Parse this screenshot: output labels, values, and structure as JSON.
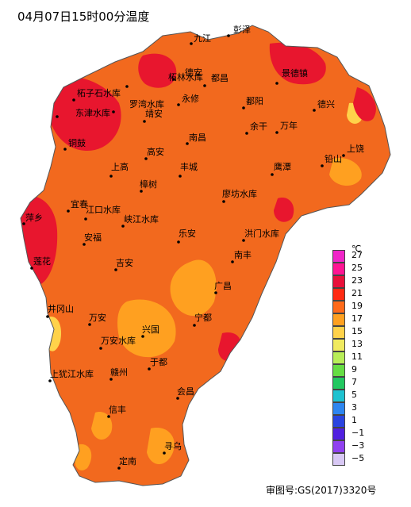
{
  "title": "04月07日15时00分温度",
  "approval_number": "审图号:GS(2017)3320号",
  "legend": {
    "unit": "℃",
    "entries": [
      {
        "label": "27",
        "color": "#f025c8"
      },
      {
        "label": "25",
        "color": "#ff1493"
      },
      {
        "label": "23",
        "color": "#e8103a"
      },
      {
        "label": "21",
        "color": "#ff2a12"
      },
      {
        "label": "19",
        "color": "#ff6a1a"
      },
      {
        "label": "17",
        "color": "#ffa020"
      },
      {
        "label": "15",
        "color": "#ffd24a"
      },
      {
        "label": "13",
        "color": "#f0ea60"
      },
      {
        "label": "11",
        "color": "#b8ee58"
      },
      {
        "label": "9",
        "color": "#66dd44"
      },
      {
        "label": "7",
        "color": "#22c860"
      },
      {
        "label": "5",
        "color": "#1ec2d0"
      },
      {
        "label": "3",
        "color": "#2e86f0"
      },
      {
        "label": "1",
        "color": "#2a44e0"
      },
      {
        "label": "−1",
        "color": "#5020e0"
      },
      {
        "label": "−3",
        "color": "#9040f0"
      },
      {
        "label": "−5",
        "color": "#d8c8f4"
      }
    ]
  },
  "colors": {
    "main_fill": "#f2691e",
    "hot": "#e8162e",
    "warm": "#ffa020",
    "mild": "#ffd24a",
    "cool": "#f0ea60"
  },
  "cities": [
    {
      "name": "九江"
    },
    {
      "name": "彭泽"
    },
    {
      "name": "柘林水库"
    },
    {
      "name": "德安"
    },
    {
      "name": "都昌"
    },
    {
      "name": "景德镇"
    },
    {
      "name": "柘子石水库"
    },
    {
      "name": "东津水库"
    },
    {
      "name": "罗湾水库"
    },
    {
      "name": "永修"
    },
    {
      "name": "鄱阳"
    },
    {
      "name": "德兴"
    },
    {
      "name": "靖安"
    },
    {
      "name": "铜鼓"
    },
    {
      "name": "南昌"
    },
    {
      "name": "余干"
    },
    {
      "name": "万年"
    },
    {
      "name": "高安"
    },
    {
      "name": "上饶"
    },
    {
      "name": "上高"
    },
    {
      "name": "丰城"
    },
    {
      "name": "鹰潭"
    },
    {
      "name": "铅山"
    },
    {
      "name": "樟树"
    },
    {
      "name": "廖坊水库"
    },
    {
      "name": "宜春"
    },
    {
      "name": "江口水库"
    },
    {
      "name": "峡江水库"
    },
    {
      "name": "萍乡"
    },
    {
      "name": "安福"
    },
    {
      "name": "乐安"
    },
    {
      "name": "洪门水库"
    },
    {
      "name": "莲花"
    },
    {
      "name": "吉安"
    },
    {
      "name": "南丰"
    },
    {
      "name": "广昌"
    },
    {
      "name": "井冈山"
    },
    {
      "name": "万安"
    },
    {
      "name": "宁都"
    },
    {
      "name": "兴国"
    },
    {
      "name": "万安水库"
    },
    {
      "name": "于都"
    },
    {
      "name": "上犹江水库"
    },
    {
      "name": "赣州"
    },
    {
      "name": "会昌"
    },
    {
      "name": "信丰"
    },
    {
      "name": "寻乌"
    },
    {
      "name": "定南"
    }
  ]
}
